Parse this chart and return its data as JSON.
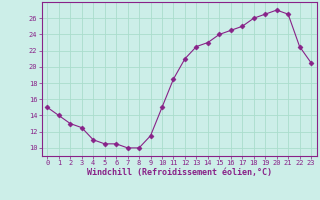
{
  "x": [
    0,
    1,
    2,
    3,
    4,
    5,
    6,
    7,
    8,
    9,
    10,
    11,
    12,
    13,
    14,
    15,
    16,
    17,
    18,
    19,
    20,
    21,
    22,
    23
  ],
  "y": [
    15,
    14,
    13,
    12.5,
    11,
    10.5,
    10.5,
    10,
    10,
    11.5,
    15,
    18.5,
    21,
    22.5,
    23,
    24,
    24.5,
    25,
    26,
    26.5,
    27,
    26.5,
    22.5,
    20.5
  ],
  "line_color": "#882288",
  "marker": "D",
  "marker_size": 2.5,
  "bg_color": "#cceee8",
  "grid_color": "#aaddcc",
  "xlabel": "Windchill (Refroidissement éolien,°C)",
  "xlabel_color": "#882288",
  "tick_color": "#882288",
  "spine_color": "#882288",
  "xlim": [
    -0.5,
    23.5
  ],
  "ylim": [
    9,
    28
  ],
  "yticks": [
    10,
    12,
    14,
    16,
    18,
    20,
    22,
    24,
    26
  ],
  "xticks": [
    0,
    1,
    2,
    3,
    4,
    5,
    6,
    7,
    8,
    9,
    10,
    11,
    12,
    13,
    14,
    15,
    16,
    17,
    18,
    19,
    20,
    21,
    22,
    23
  ]
}
